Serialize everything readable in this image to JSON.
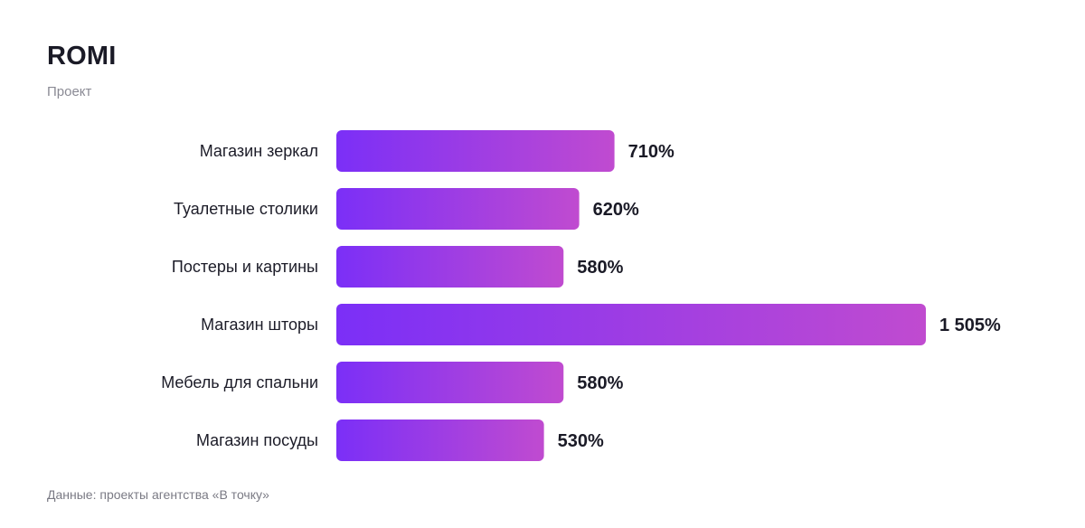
{
  "title": "ROMI",
  "subtitle": "Проект",
  "footnote": "Данные: проекты агентства «В точку»",
  "colors": {
    "bar_start": "#7b2ff7",
    "bar_end": "#c04bd0",
    "label": "#1c1c28",
    "value": "#1a1a26"
  },
  "chart_data": {
    "type": "bar",
    "orientation": "horizontal",
    "categories": [
      "Магазин зеркал",
      "Туалетные столики",
      "Постеры и картины",
      "Магазин шторы",
      "Мебель для спальни",
      "Магазин посуды"
    ],
    "values": [
      710,
      620,
      580,
      1505,
      580,
      530
    ],
    "value_labels": [
      "710%",
      "620%",
      "580%",
      "1 505%",
      "580%",
      "530%"
    ],
    "unit": "%"
  }
}
